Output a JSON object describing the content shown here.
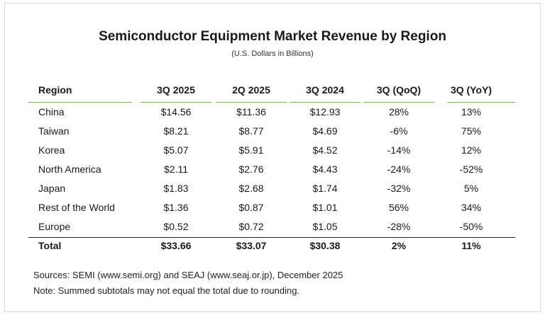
{
  "chart_data": {
    "type": "table",
    "title": "Semiconductor Equipment Market Revenue by Region",
    "subtitle": "(U.S. Dollars in Billions)",
    "columns": [
      "Region",
      "3Q 2025",
      "2Q 2025",
      "3Q 2024",
      "3Q (QoQ)",
      "3Q (YoY)"
    ],
    "rows": [
      [
        "China",
        "$14.56",
        "$11.36",
        "$12.93",
        "28%",
        "13%"
      ],
      [
        "Taiwan",
        "$8.21",
        "$8.77",
        "$4.69",
        "-6%",
        "75%"
      ],
      [
        "Korea",
        "$5.07",
        "$5.91",
        "$4.52",
        "-14%",
        "12%"
      ],
      [
        "North America",
        "$2.11",
        "$2.76",
        "$4.43",
        "-24%",
        "-52%"
      ],
      [
        "Japan",
        "$1.83",
        "$2.68",
        "$1.74",
        "-32%",
        "5%"
      ],
      [
        "Rest of the World",
        "$1.36",
        "$0.87",
        "$1.01",
        "56%",
        "34%"
      ],
      [
        "Europe",
        "$0.52",
        "$0.72",
        "$1.05",
        "-28%",
        "-50%"
      ]
    ],
    "total": [
      "Total",
      "$33.66",
      "$33.07",
      "$30.38",
      "2%",
      "11%"
    ]
  },
  "footer": {
    "sources": "Sources: SEMI (www.semi.org) and SEAJ (www.seaj.or.jp), December 2025",
    "note": "Note: Summed subtotals may not equal the total due to rounding."
  },
  "colors": {
    "header_rule": "#7ab648",
    "total_rule": "#222222"
  }
}
